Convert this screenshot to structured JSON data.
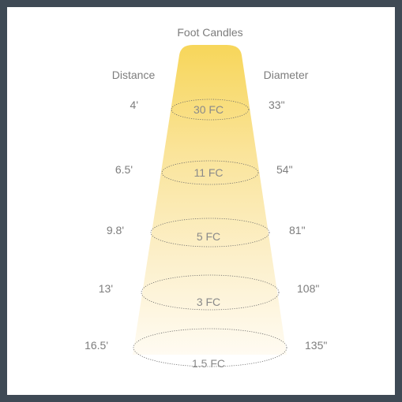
{
  "title": "Foot Candles",
  "headers": {
    "distance": "Distance",
    "diameter": "Diameter"
  },
  "rows": [
    {
      "distance": "4'",
      "fc": "30 FC",
      "diameter": "33\""
    },
    {
      "distance": "6.5'",
      "fc": "11 FC",
      "diameter": "54\""
    },
    {
      "distance": "9.8'",
      "fc": "5 FC",
      "diameter": "81\""
    },
    {
      "distance": "13'",
      "fc": "3 FC",
      "diameter": "108\""
    },
    {
      "distance": "16.5'",
      "fc": "1.5 FC",
      "diameter": "135\""
    }
  ],
  "colors": {
    "frame": "#3f4a55",
    "beam_top": "#f7d85e",
    "beam_bottom": "#fffaf0",
    "text": "#7d7d7d"
  }
}
